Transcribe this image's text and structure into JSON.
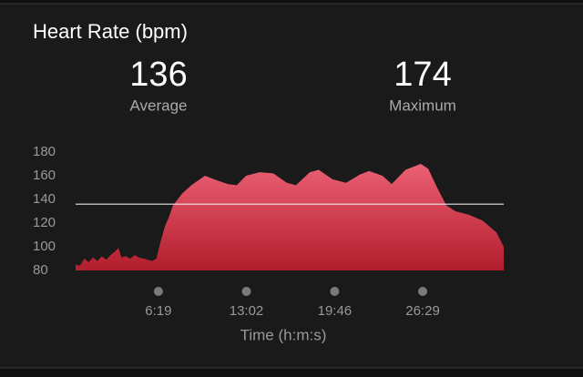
{
  "chart_data": {
    "type": "area",
    "title": "Heart Rate (bpm)",
    "stats": [
      {
        "value": 136,
        "label": "Average"
      },
      {
        "value": 174,
        "label": "Maximum"
      }
    ],
    "x_label": "Time (h:m:s)",
    "x": [
      0,
      20,
      40,
      60,
      80,
      100,
      120,
      140,
      160,
      180,
      196,
      210,
      230,
      250,
      270,
      290,
      310,
      330,
      350,
      370,
      390,
      410,
      425,
      446,
      488,
      530,
      592,
      634,
      696,
      738,
      780,
      842,
      905,
      967,
      1009,
      1072,
      1113,
      1176,
      1238,
      1301,
      1343,
      1405,
      1447,
      1510,
      1580,
      1614,
      1655,
      1697,
      1739,
      1801,
      1864,
      1927,
      1960
    ],
    "values": [
      85,
      84,
      90,
      87,
      91,
      88,
      92,
      89,
      93,
      96,
      99,
      91,
      92,
      90,
      93,
      91,
      90,
      89,
      88,
      90,
      105,
      118,
      124,
      135,
      145,
      152,
      160,
      157,
      153,
      152,
      160,
      163,
      162,
      154,
      152,
      163,
      165,
      157,
      154,
      161,
      164,
      160,
      153,
      165,
      170,
      166,
      150,
      135,
      130,
      127,
      122,
      112,
      100
    ],
    "xlim": [
      0,
      1960
    ],
    "ylim": [
      80,
      180
    ],
    "yticks": [
      80,
      100,
      120,
      140,
      160,
      180
    ],
    "xticks": [
      {
        "value": 379,
        "label": "6:19"
      },
      {
        "value": 782,
        "label": "13:02"
      },
      {
        "value": 1186,
        "label": "19:46"
      },
      {
        "value": 1589,
        "label": "26:29"
      }
    ],
    "gradient": [
      "#ec6074",
      "#b11d2c"
    ]
  }
}
